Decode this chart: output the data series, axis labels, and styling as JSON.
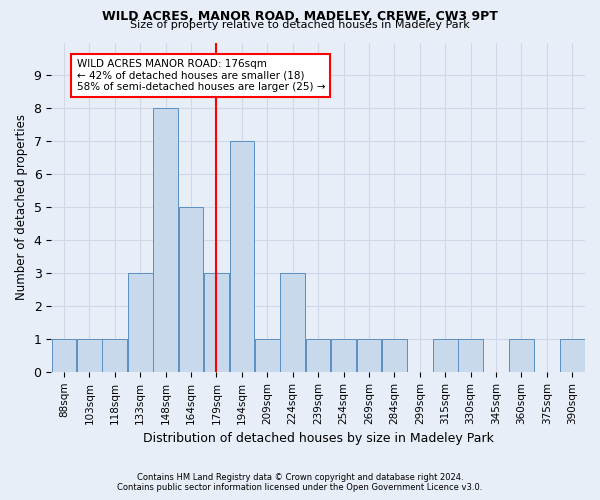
{
  "title1": "WILD ACRES, MANOR ROAD, MADELEY, CREWE, CW3 9PT",
  "title2": "Size of property relative to detached houses in Madeley Park",
  "xlabel": "Distribution of detached houses by size in Madeley Park",
  "ylabel": "Number of detached properties",
  "footnote1": "Contains HM Land Registry data © Crown copyright and database right 2024.",
  "footnote2": "Contains public sector information licensed under the Open Government Licence v3.0.",
  "bin_labels": [
    "88sqm",
    "103sqm",
    "118sqm",
    "133sqm",
    "148sqm",
    "164sqm",
    "179sqm",
    "194sqm",
    "209sqm",
    "224sqm",
    "239sqm",
    "254sqm",
    "269sqm",
    "284sqm",
    "299sqm",
    "315sqm",
    "330sqm",
    "345sqm",
    "360sqm",
    "375sqm",
    "390sqm"
  ],
  "bar_heights": [
    1,
    1,
    1,
    3,
    8,
    5,
    3,
    7,
    1,
    3,
    1,
    1,
    1,
    1,
    0,
    1,
    1,
    0,
    1,
    0,
    1
  ],
  "bar_color": "#c9d9ec",
  "bar_edge_color": "#5a8fc0",
  "red_line_index": 6,
  "annotation_text": "WILD ACRES MANOR ROAD: 176sqm\n← 42% of detached houses are smaller (18)\n58% of semi-detached houses are larger (25) →",
  "annotation_box_color": "white",
  "annotation_box_edge": "red",
  "ylim": [
    0,
    10
  ],
  "yticks": [
    0,
    1,
    2,
    3,
    4,
    5,
    6,
    7,
    8,
    9,
    10
  ],
  "grid_color": "#d0d8e8",
  "background_color": "#e8eef8",
  "plot_bg_color": "#e8eef8"
}
